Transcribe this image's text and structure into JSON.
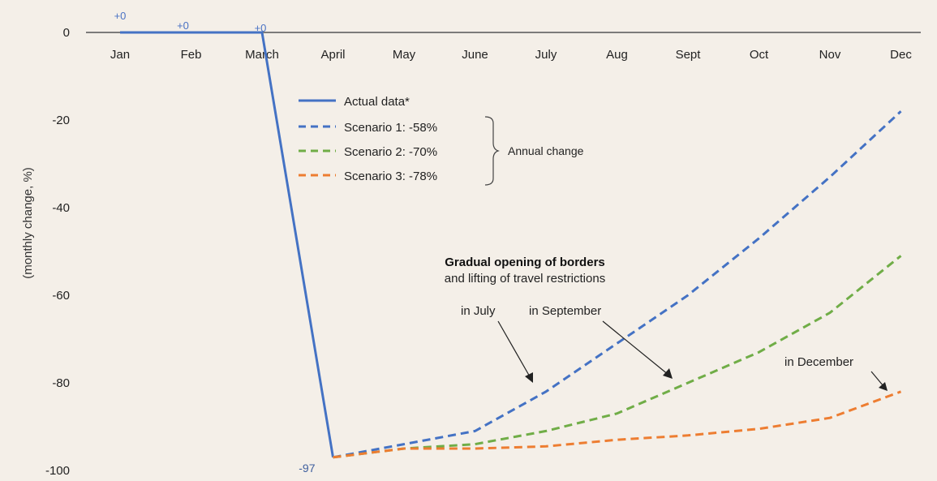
{
  "chart_data": {
    "type": "line",
    "ylabel": "(monthly change, %)",
    "ylim": [
      -100,
      0
    ],
    "yticks": [
      0,
      -20,
      -40,
      -60,
      -80,
      -100
    ],
    "categories": [
      "Jan",
      "Feb",
      "March",
      "April",
      "May",
      "June",
      "July",
      "Aug",
      "Sept",
      "Oct",
      "Nov",
      "Dec"
    ],
    "grid": false,
    "legend_position": "upper-center",
    "series": [
      {
        "name": "Actual data*",
        "style": "solid",
        "color": "#4472c4",
        "values": [
          0,
          0,
          0,
          -97,
          null,
          null,
          null,
          null,
          null,
          null,
          null,
          null
        ]
      },
      {
        "name": "Scenario 1:  -58%",
        "style": "dashed",
        "color": "#4472c4",
        "values": [
          null,
          null,
          null,
          -97,
          -94,
          -91,
          -82,
          -71,
          -60,
          -47,
          -33,
          -18
        ]
      },
      {
        "name": "Scenario 2:  -70%",
        "style": "dashed",
        "color": "#70ad47",
        "values": [
          null,
          null,
          null,
          -97,
          -95,
          -94,
          -91,
          -87,
          -80,
          -73,
          -64,
          -51
        ]
      },
      {
        "name": "Scenario 3:  -78%",
        "style": "dashed",
        "color": "#ed7d31",
        "values": [
          null,
          null,
          null,
          -97,
          -95,
          -95,
          -94.5,
          -93,
          -92,
          -90.5,
          -88,
          -82
        ]
      }
    ],
    "legend_bracket_label": "Annual change",
    "data_labels": [
      "+0",
      "+0",
      "+0",
      "-97"
    ],
    "annotations": {
      "title_bold": "Gradual opening of borders",
      "title_sub": "and lifting of travel restrictions",
      "in_july": "in July",
      "in_september": "in September",
      "in_december": "in December"
    }
  }
}
